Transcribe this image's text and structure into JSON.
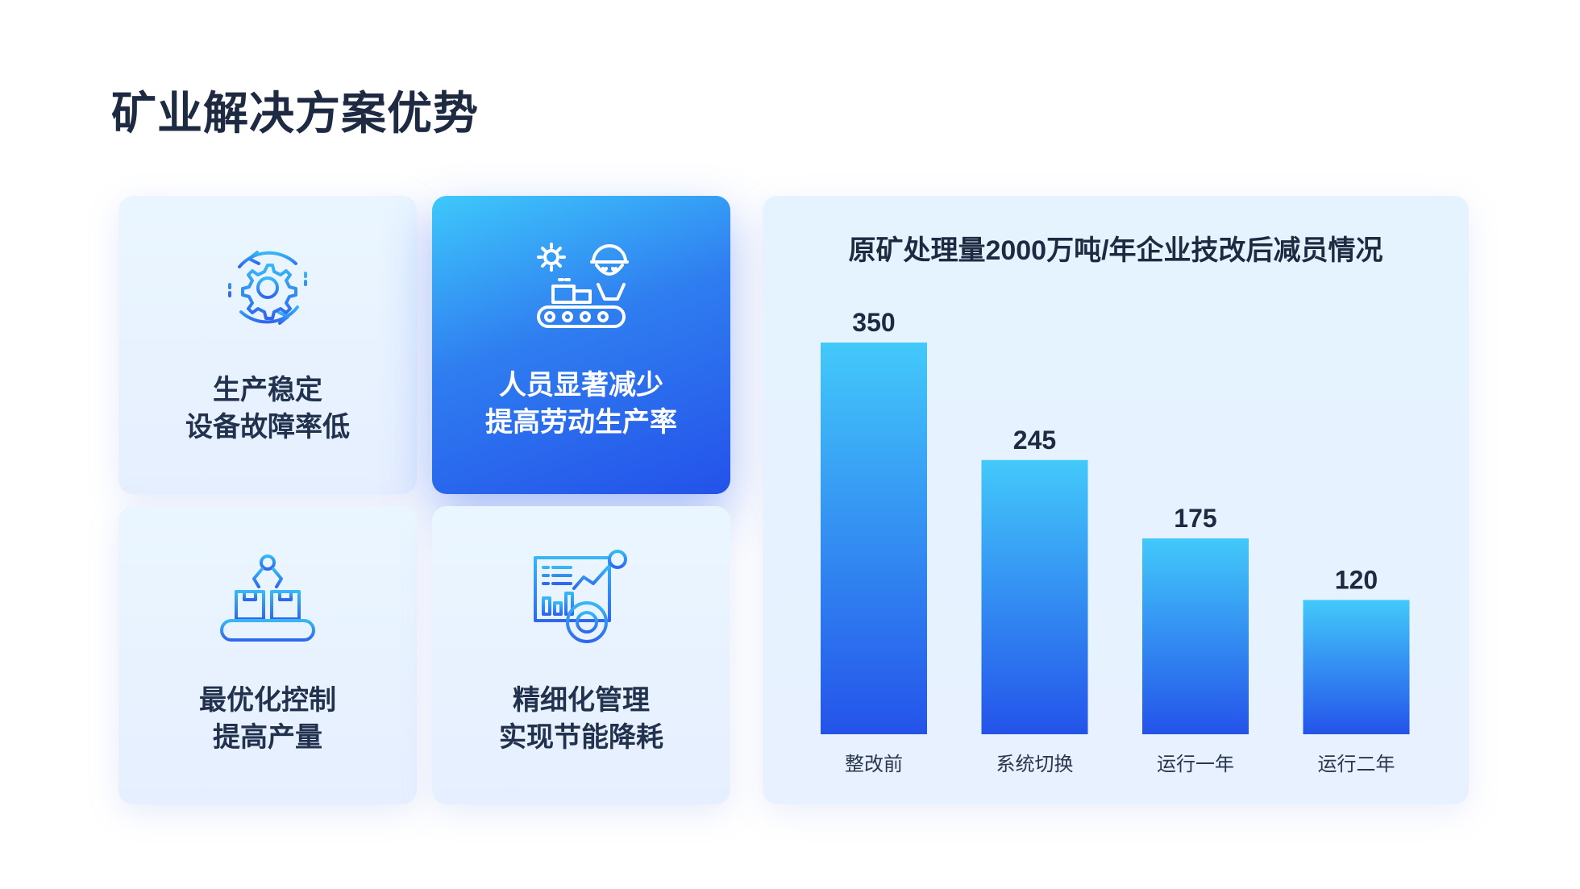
{
  "page": {
    "title": "矿业解决方案优势"
  },
  "cards": [
    {
      "icon": "gear-cycle-icon",
      "line1": "生产稳定",
      "line2": "设备故障率低",
      "active": false
    },
    {
      "icon": "worker-conveyor-icon",
      "line1": "人员显著减少",
      "line2": "提高劳动生产率",
      "active": true
    },
    {
      "icon": "robot-arm-conveyor-icon",
      "line1": "最优化控制",
      "line2": "提高产量",
      "active": false
    },
    {
      "icon": "dashboard-analytics-icon",
      "line1": "精细化管理",
      "line2": "实现节能降耗",
      "active": false
    }
  ],
  "chart_data": {
    "type": "bar",
    "title": "原矿处理量2000万吨/年企业技改后减员情况",
    "categories": [
      "整改前",
      "系统切换",
      "运行一年",
      "运行二年"
    ],
    "values": [
      350,
      245,
      175,
      120
    ],
    "ylim": [
      0,
      350
    ],
    "grid": false,
    "colors": {
      "bar_top": "#43c9fa",
      "bar_bottom": "#2453ea"
    }
  }
}
